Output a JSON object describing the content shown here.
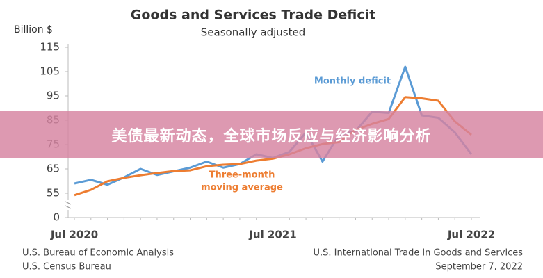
{
  "banner": {
    "text": "美债最新动态，全球市场反应与经济影响分析"
  },
  "chart_data": {
    "type": "line",
    "title": "Goods and Services Trade Deficit",
    "subtitle": "Seasonally adjusted",
    "ylabel": "Billion $",
    "categories": [
      "Jul 2020",
      null,
      null,
      null,
      null,
      null,
      null,
      null,
      null,
      null,
      null,
      null,
      "Jul 2021",
      null,
      null,
      null,
      null,
      null,
      null,
      null,
      null,
      null,
      null,
      null,
      "Jul 2022"
    ],
    "series": [
      {
        "name": "Monthly deficit",
        "color": "#5b9bd5",
        "values": [
          59,
          60.5,
          58.5,
          61.5,
          65,
          62.5,
          64,
          65.5,
          68,
          65.5,
          67,
          71,
          69.5,
          72,
          80,
          68,
          79,
          80.5,
          88.5,
          88,
          107,
          87,
          86,
          80,
          71
        ]
      },
      {
        "name": "Three-month moving average",
        "color": "#ed7d31",
        "values": [
          54.2,
          56.4,
          59.9,
          61.3,
          62.4,
          63.3,
          64.1,
          64.4,
          66.1,
          66.7,
          67,
          68.4,
          69.2,
          71,
          73.5,
          75.2,
          76,
          81,
          83.5,
          85.5,
          94.5,
          94,
          93,
          84.5,
          79
        ]
      }
    ],
    "annotations": [
      [
        "Monthly deficit"
      ],
      [
        "Three-month",
        "moving average"
      ]
    ],
    "ylim": [
      45,
      115
    ],
    "yticks": [
      0,
      55,
      65,
      75,
      85,
      95,
      105,
      115
    ],
    "axis_break": true,
    "grid": false,
    "source": {
      "left": [
        "U.S. Bureau of Economic Analysis",
        "U.S. Census Bureau"
      ],
      "right": [
        "U.S. International Trade in Goods and Services",
        "September 7, 2022"
      ]
    }
  }
}
